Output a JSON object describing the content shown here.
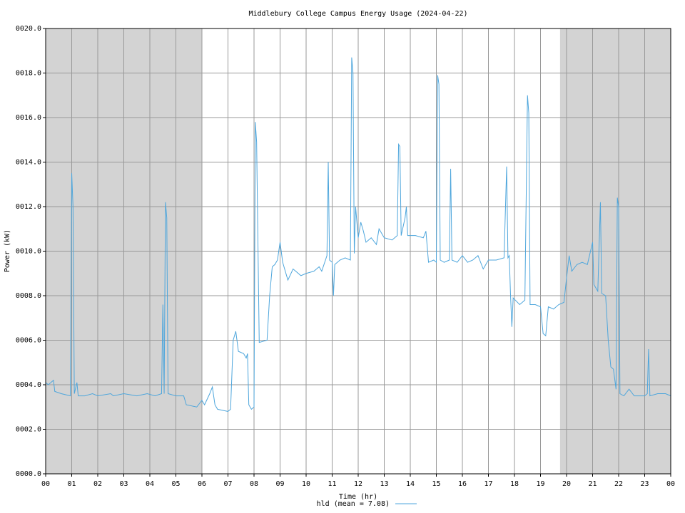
{
  "chart_data": {
    "type": "line",
    "title": "Middlebury College Campus Energy Usage (2024-04-22)",
    "xlabel": "Time (hr)",
    "ylabel": "Power (kW)",
    "xlim": [
      0,
      24
    ],
    "ylim": [
      0,
      20
    ],
    "xticks": [
      {
        "value": 0,
        "label": "00"
      },
      {
        "value": 1,
        "label": "01"
      },
      {
        "value": 2,
        "label": "02"
      },
      {
        "value": 3,
        "label": "03"
      },
      {
        "value": 4,
        "label": "04"
      },
      {
        "value": 5,
        "label": "05"
      },
      {
        "value": 6,
        "label": "06"
      },
      {
        "value": 7,
        "label": "07"
      },
      {
        "value": 8,
        "label": "08"
      },
      {
        "value": 9,
        "label": "09"
      },
      10,
      11,
      12,
      13,
      14,
      15,
      16,
      17,
      18,
      19,
      20,
      21,
      22,
      23,
      {
        "value": 24,
        "label": "00"
      }
    ],
    "yticks": [
      {
        "value": 0,
        "label": "0000.0"
      },
      {
        "value": 2,
        "label": "0002.0"
      },
      {
        "value": 4,
        "label": "0004.0"
      },
      {
        "value": 6,
        "label": "0006.0"
      },
      {
        "value": 8,
        "label": "0008.0"
      },
      {
        "value": 10,
        "label": "0010.0"
      },
      {
        "value": 12,
        "label": "0012.0"
      },
      {
        "value": 14,
        "label": "0014.0"
      },
      {
        "value": 16,
        "label": "0016.0"
      },
      {
        "value": 18,
        "label": "0018.0"
      },
      {
        "value": 20,
        "label": "0020.0"
      }
    ],
    "grid": true,
    "shaded_ranges": [
      [
        0,
        6
      ],
      [
        19.75,
        24
      ]
    ],
    "shade_color": "#d3d3d3",
    "legend": "bottom",
    "x": [
      0,
      0.1,
      0.3,
      0.35,
      0.6,
      0.95,
      1,
      1.05,
      1.1,
      1.2,
      1.25,
      1.5,
      1.8,
      2,
      2.5,
      2.6,
      3,
      3.5,
      3.9,
      4.2,
      4.45,
      4.5,
      4.55,
      4.6,
      4.65,
      4.7,
      5,
      5.3,
      5.4,
      5.8,
      6,
      6.1,
      6.3,
      6.4,
      6.5,
      6.6,
      7,
      7.1,
      7.2,
      7.3,
      7.4,
      7.6,
      7.7,
      7.75,
      7.8,
      7.9,
      8,
      8.05,
      8.1,
      8.2,
      8.5,
      8.6,
      8.7,
      8.8,
      8.9,
      9,
      9.1,
      9.3,
      9.5,
      9.8,
      10,
      10.3,
      10.5,
      10.6,
      10.8,
      10.85,
      10.9,
      11,
      11.05,
      11.1,
      11.3,
      11.5,
      11.7,
      11.75,
      11.8,
      11.85,
      11.9,
      12,
      12.1,
      12.2,
      12.3,
      12.5,
      12.7,
      12.8,
      13,
      13.3,
      13.5,
      13.55,
      13.6,
      13.65,
      13.8,
      13.85,
      13.9,
      14.2,
      14.5,
      14.6,
      14.7,
      14.9,
      15,
      15.05,
      15.1,
      15.15,
      15.3,
      15.5,
      15.55,
      15.6,
      15.8,
      16,
      16.2,
      16.4,
      16.6,
      16.8,
      17,
      17.3,
      17.6,
      17.7,
      17.75,
      17.8,
      17.85,
      17.9,
      17.95,
      18.2,
      18.4,
      18.5,
      18.55,
      18.6,
      18.8,
      19,
      19.1,
      19.2,
      19.3,
      19.5,
      19.7,
      19.9,
      20,
      20.1,
      20.2,
      20.4,
      20.6,
      20.8,
      21,
      21.05,
      21.2,
      21.3,
      21.35,
      21.5,
      21.6,
      21.7,
      21.8,
      21.9,
      21.95,
      22,
      22.05,
      22.2,
      22.4,
      22.6,
      23,
      23.1,
      23.15,
      23.2,
      23.5,
      23.8,
      24
    ],
    "series": [
      {
        "name": "hld (mean = 7.08)",
        "color": "#4ea6dc",
        "values": [
          4.1,
          4.0,
          4.2,
          3.7,
          3.6,
          3.5,
          13.5,
          12.0,
          3.6,
          4.1,
          3.5,
          3.5,
          3.6,
          3.5,
          3.6,
          3.5,
          3.6,
          3.5,
          3.6,
          3.5,
          3.6,
          7.6,
          3.6,
          12.2,
          11.5,
          3.6,
          3.5,
          3.5,
          3.1,
          3.0,
          3.3,
          3.1,
          3.6,
          3.9,
          3.1,
          2.9,
          2.8,
          2.9,
          6.0,
          6.4,
          5.5,
          5.4,
          5.2,
          5.4,
          3.1,
          2.9,
          3.0,
          15.8,
          14.9,
          5.9,
          6.0,
          8.0,
          9.3,
          9.4,
          9.6,
          10.4,
          9.5,
          8.7,
          9.2,
          8.9,
          9.0,
          9.1,
          9.3,
          9.1,
          9.8,
          14.0,
          9.6,
          9.5,
          8.0,
          9.4,
          9.6,
          9.7,
          9.6,
          18.7,
          18.0,
          9.9,
          12.0,
          10.6,
          11.3,
          10.9,
          10.4,
          10.6,
          10.3,
          11.0,
          10.6,
          10.5,
          10.7,
          14.8,
          14.7,
          10.7,
          11.5,
          12.0,
          10.7,
          10.7,
          10.6,
          10.9,
          9.5,
          9.6,
          9.5,
          17.9,
          17.5,
          9.6,
          9.5,
          9.6,
          13.7,
          9.6,
          9.5,
          9.8,
          9.5,
          9.6,
          9.8,
          9.2,
          9.6,
          9.6,
          9.7,
          13.8,
          9.7,
          9.8,
          8.0,
          6.6,
          7.9,
          7.6,
          7.8,
          17.0,
          16.2,
          7.6,
          7.6,
          7.5,
          6.3,
          6.2,
          7.5,
          7.4,
          7.6,
          7.7,
          8.8,
          9.8,
          9.1,
          9.4,
          9.5,
          9.4,
          10.4,
          8.5,
          8.2,
          12.2,
          8.1,
          8.0,
          6.0,
          4.8,
          4.7,
          3.8,
          12.4,
          12.0,
          3.6,
          3.5,
          3.8,
          3.5,
          3.5,
          3.6,
          5.6,
          3.5,
          3.6,
          3.6,
          3.5
        ]
      }
    ]
  }
}
